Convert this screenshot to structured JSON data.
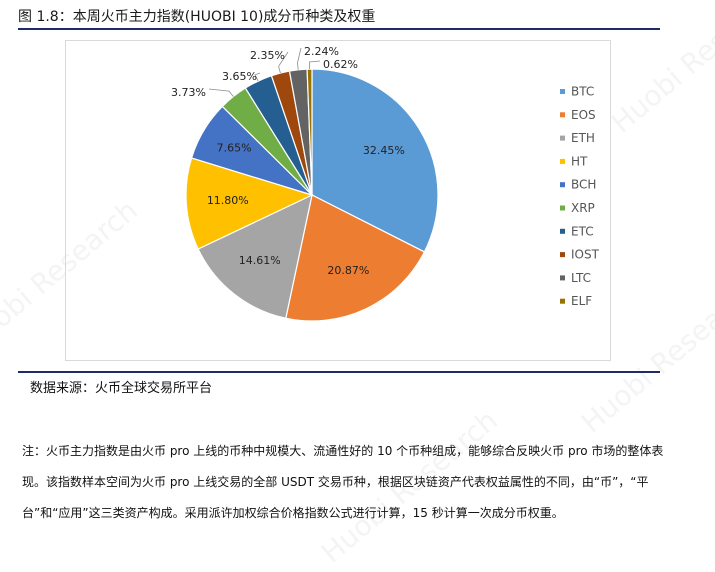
{
  "title": "图 1.8：本周火币主力指数(HUOBI 10)成分币种类及权重",
  "source": "数据来源：火币全球交易所平台",
  "note": "注：火币主力指数是由火币 pro 上线的币种中规模大、流通性好的 10 个币种组成，能够综合反映火币 pro 市场的整体表现。该指数样本空间为火币 pro 上线交易的全部 USDT 交易币种，根据区块链资产代表权益属性的不同，由“币”，“平台”和“应用”这三类资产构成。采用派许加权综合价格指数公式进行计算，15 秒计算一次成分币权重。",
  "watermark": "Huobi Research",
  "chart_data": {
    "type": "pie",
    "unit": "%",
    "legend_position": "right",
    "categories": [
      "BTC",
      "EOS",
      "ETH",
      "HT",
      "BCH",
      "XRP",
      "ETC",
      "IOST",
      "LTC",
      "ELF"
    ],
    "values": [
      32.45,
      20.87,
      14.61,
      11.8,
      7.65,
      3.73,
      3.65,
      2.35,
      2.24,
      0.62
    ],
    "labels": [
      "32.45%",
      "20.87%",
      "14.61%",
      "11.80%",
      "7.65%",
      "3.73%",
      "3.65%",
      "2.35%",
      "2.24%",
      "0.62%"
    ],
    "colors": [
      "#5B9BD5",
      "#ED7D31",
      "#A5A5A5",
      "#FFC000",
      "#4472C4",
      "#70AD47",
      "#255E91",
      "#9E480E",
      "#636363",
      "#997300"
    ]
  }
}
